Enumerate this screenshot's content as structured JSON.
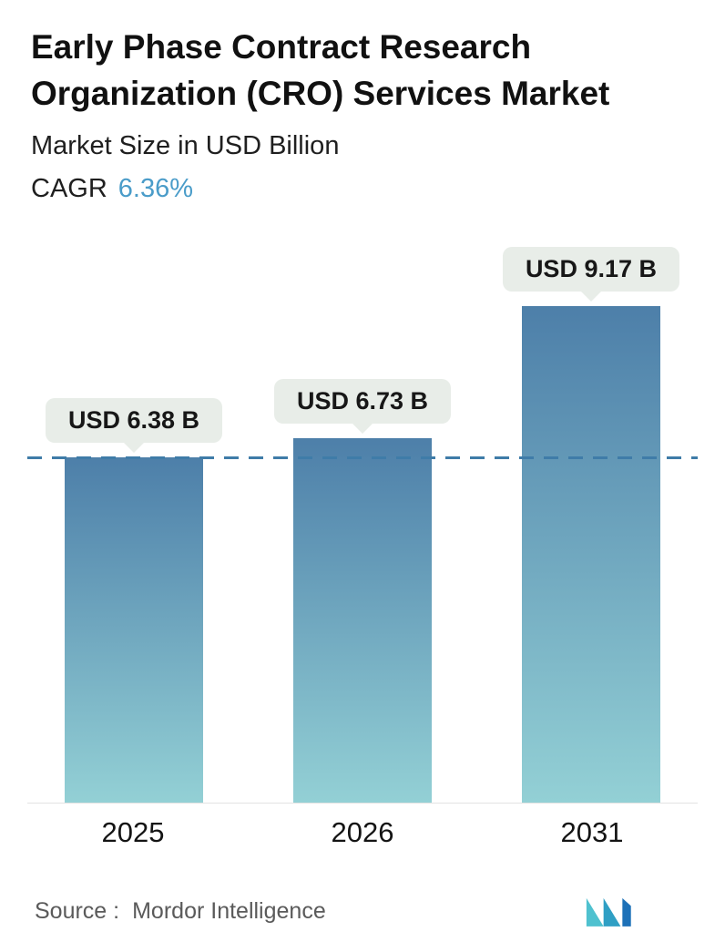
{
  "header": {
    "title": "Early Phase Contract Research Organization (CRO) Services Market",
    "subtitle": "Market Size in USD Billion",
    "cagr_label": "CAGR",
    "cagr_value": "6.36%"
  },
  "chart_data": {
    "type": "bar",
    "title": "Early Phase Contract Research Organization (CRO) Services Market",
    "subtitle": "Market Size in USD Billion",
    "cagr": "6.36%",
    "categories": [
      "2025",
      "2026",
      "2031"
    ],
    "values": [
      6.38,
      6.73,
      9.17
    ],
    "value_labels": [
      "USD 6.38 B",
      "USD 6.73 B",
      "USD 9.17 B"
    ],
    "unit": "USD Billion",
    "ylim": [
      0,
      9.17
    ],
    "reference_line_value": 6.38,
    "legend": "none",
    "grid": "off",
    "bar_gradient_top": "#4d7fa9",
    "bar_gradient_bottom": "#93d0d5",
    "label_bg": "#e8ede8",
    "dashed_line_color": "#3f7ca8"
  },
  "footer": {
    "source_label": "Source :",
    "source_value": "Mordor Intelligence"
  }
}
